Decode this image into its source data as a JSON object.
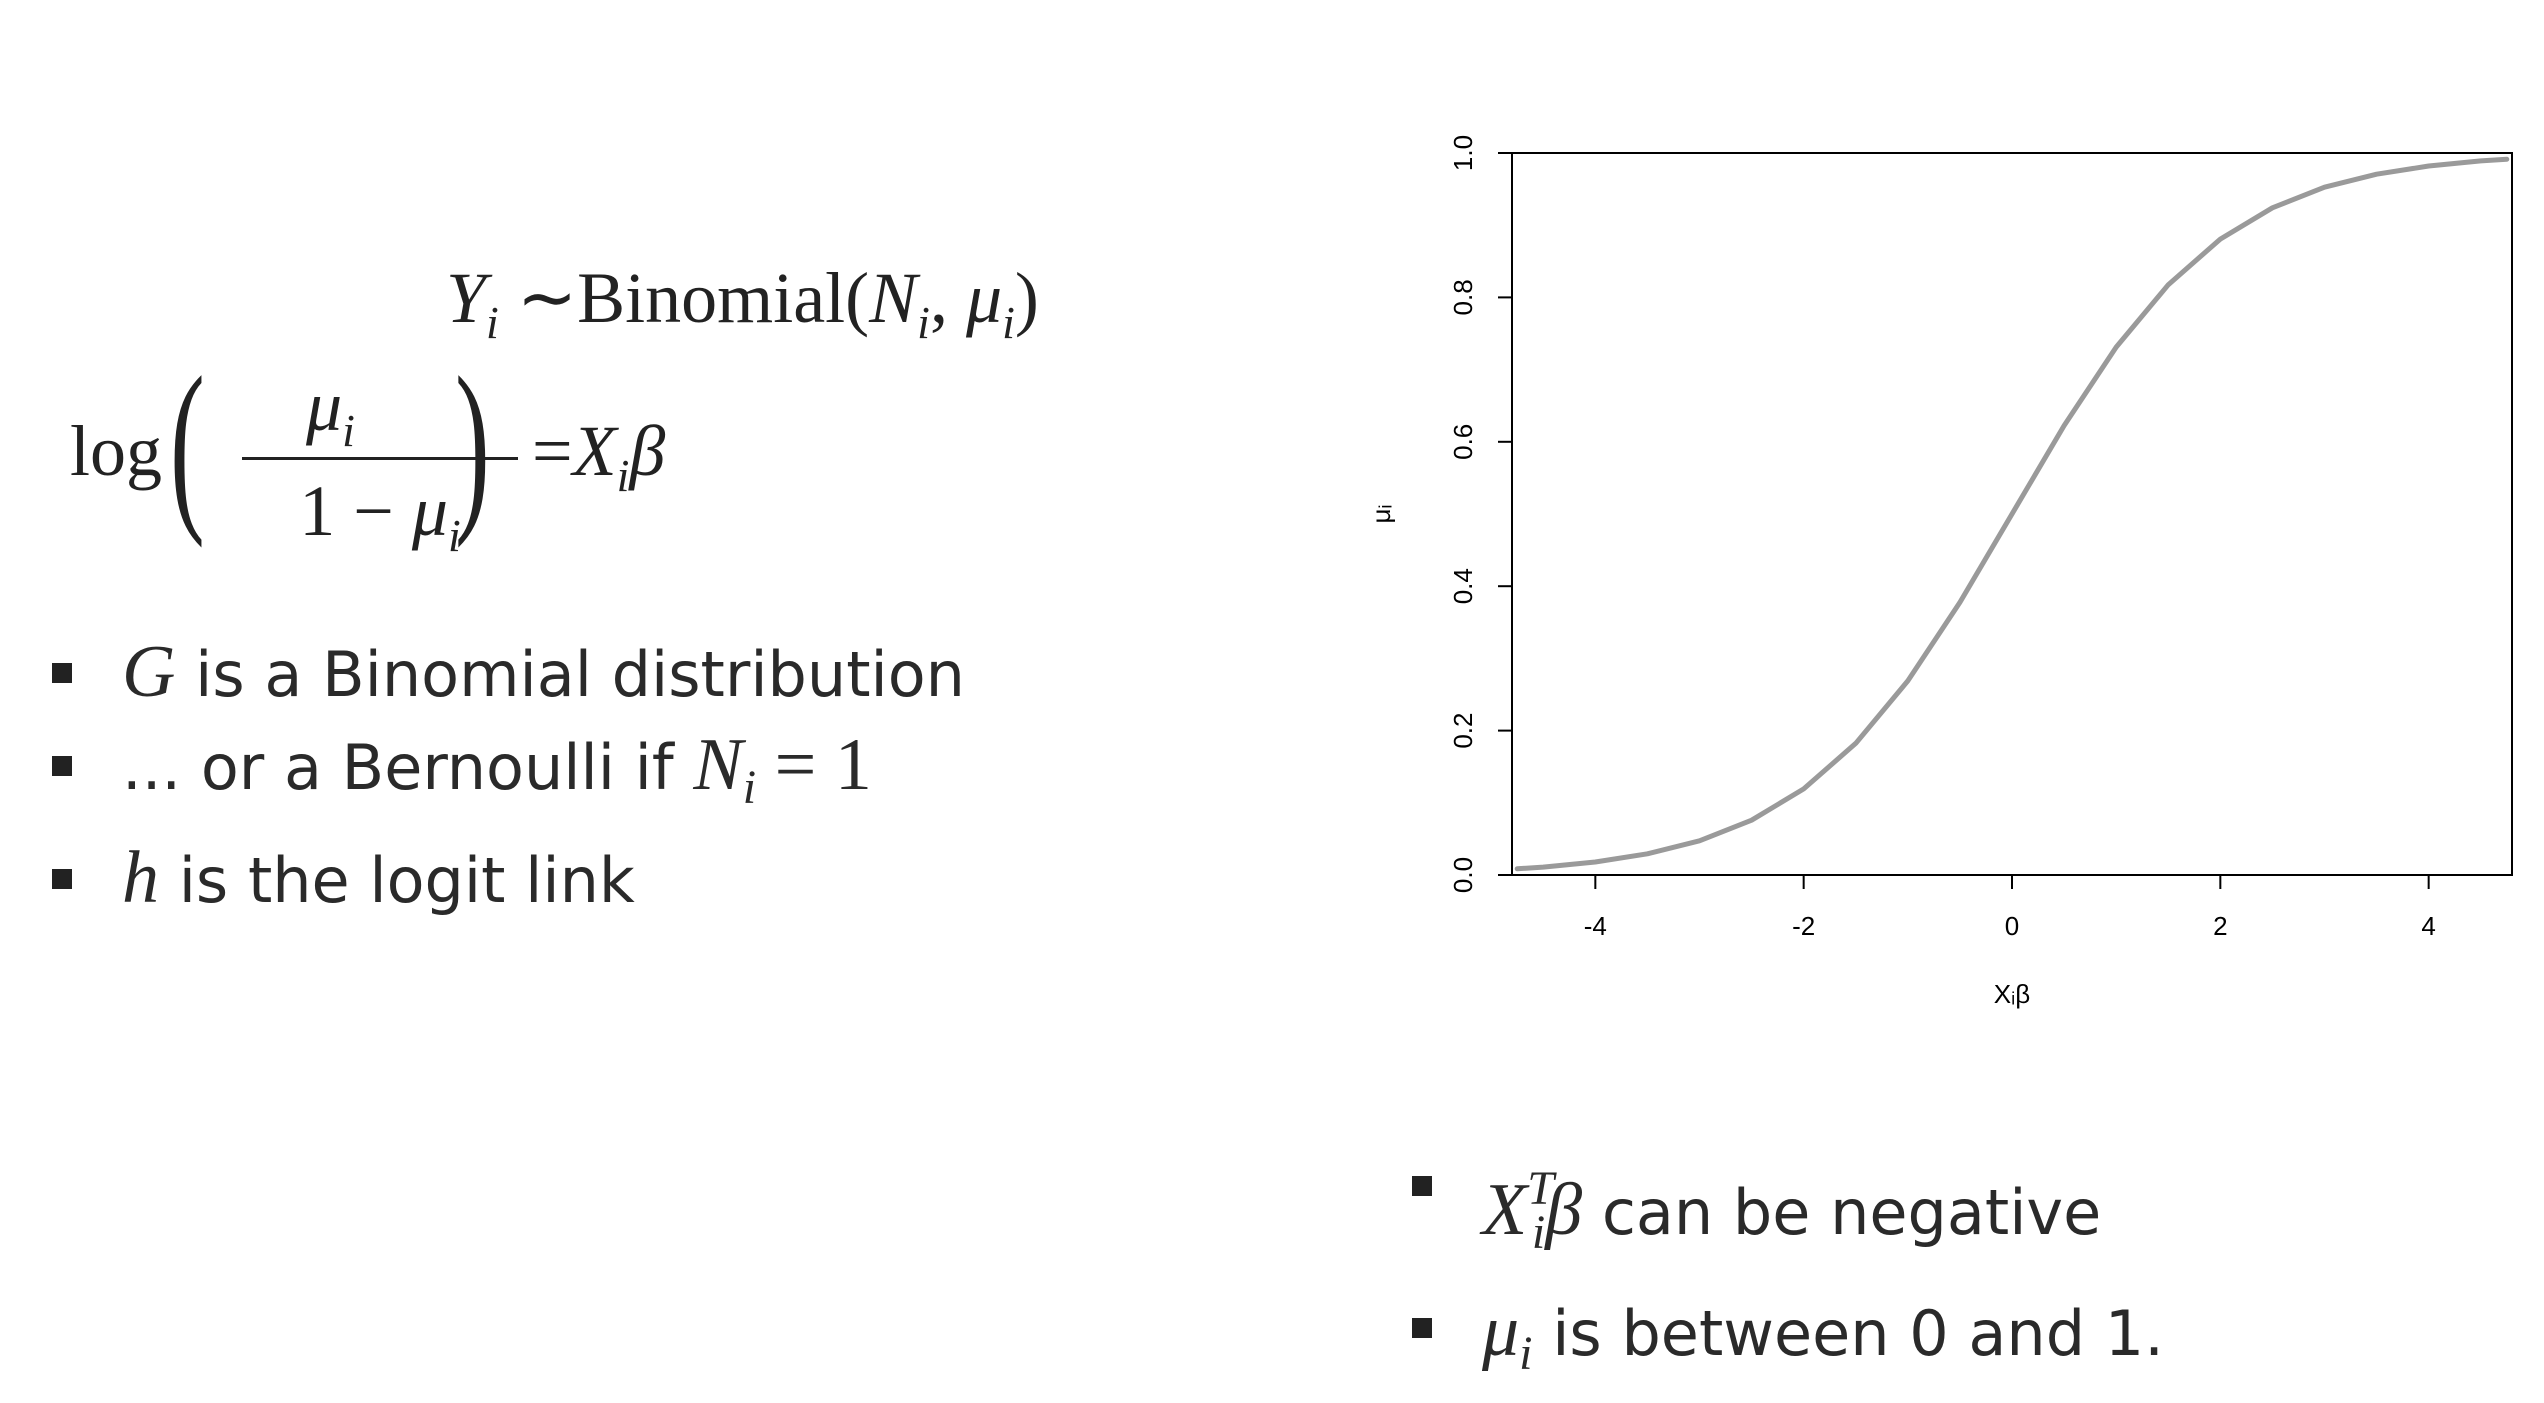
{
  "equations": {
    "eq1": {
      "lhs_var": "Y",
      "lhs_sub": "i",
      "tilde": "∼",
      "dist": "Binomial(",
      "n_var": "N",
      "n_sub": "i",
      "comma": ", ",
      "mu": "μ",
      "mu_sub": "i",
      "close": ")"
    },
    "eq2": {
      "log": "log",
      "num_mu": "μ",
      "num_sub": "i",
      "den_one": "1 − ",
      "den_mu": "μ",
      "den_sub": "i",
      "eq": "=",
      "x": "X",
      "x_sub": "i",
      "beta": "β"
    }
  },
  "left_bullets": [
    {
      "math": "G",
      "text": " is a Binomial distribution"
    },
    {
      "text_pre": "... or a Bernoulli if ",
      "math": "N",
      "math_sub": "i",
      "math_post": " = 1"
    },
    {
      "math": "h",
      "text": " is the logit link"
    }
  ],
  "right_bullets": [
    {
      "math": "X",
      "math_sub": "i",
      "math_sup": "T",
      "math_post": "β",
      "text": " can be negative"
    },
    {
      "math": "μ",
      "math_sub": "i",
      "text": " is between 0 and 1."
    }
  ],
  "chart_data": {
    "type": "line",
    "title": "",
    "xlabel": "Xᵢβ",
    "ylabel": "μᵢ",
    "xlim": [
      -4.8,
      4.8
    ],
    "ylim": [
      0.0,
      1.0
    ],
    "xticks": [
      -4,
      -2,
      0,
      2,
      4
    ],
    "xtick_labels": [
      "-4",
      "-2",
      "0",
      "2",
      "4"
    ],
    "yticks": [
      0.0,
      0.2,
      0.4,
      0.6,
      0.8,
      1.0
    ],
    "ytick_labels": [
      "0.0",
      "0.2",
      "0.4",
      "0.6",
      "0.8",
      "1.0"
    ],
    "grid": false,
    "series": [
      {
        "color": "#9a9a9a",
        "x": [
          -4.75,
          -4.5,
          -4,
          -3.5,
          -3,
          -2.5,
          -2,
          -1.5,
          -1,
          -0.5,
          0,
          0.5,
          1,
          1.5,
          2,
          2.5,
          3,
          3.5,
          4,
          4.5,
          4.75
        ],
        "y": [
          0.0086,
          0.011,
          0.018,
          0.0293,
          0.0474,
          0.0759,
          0.1192,
          0.1824,
          0.2689,
          0.3775,
          0.5,
          0.6225,
          0.7311,
          0.8176,
          0.8808,
          0.9241,
          0.9526,
          0.9707,
          0.982,
          0.989,
          0.9914
        ]
      }
    ]
  }
}
